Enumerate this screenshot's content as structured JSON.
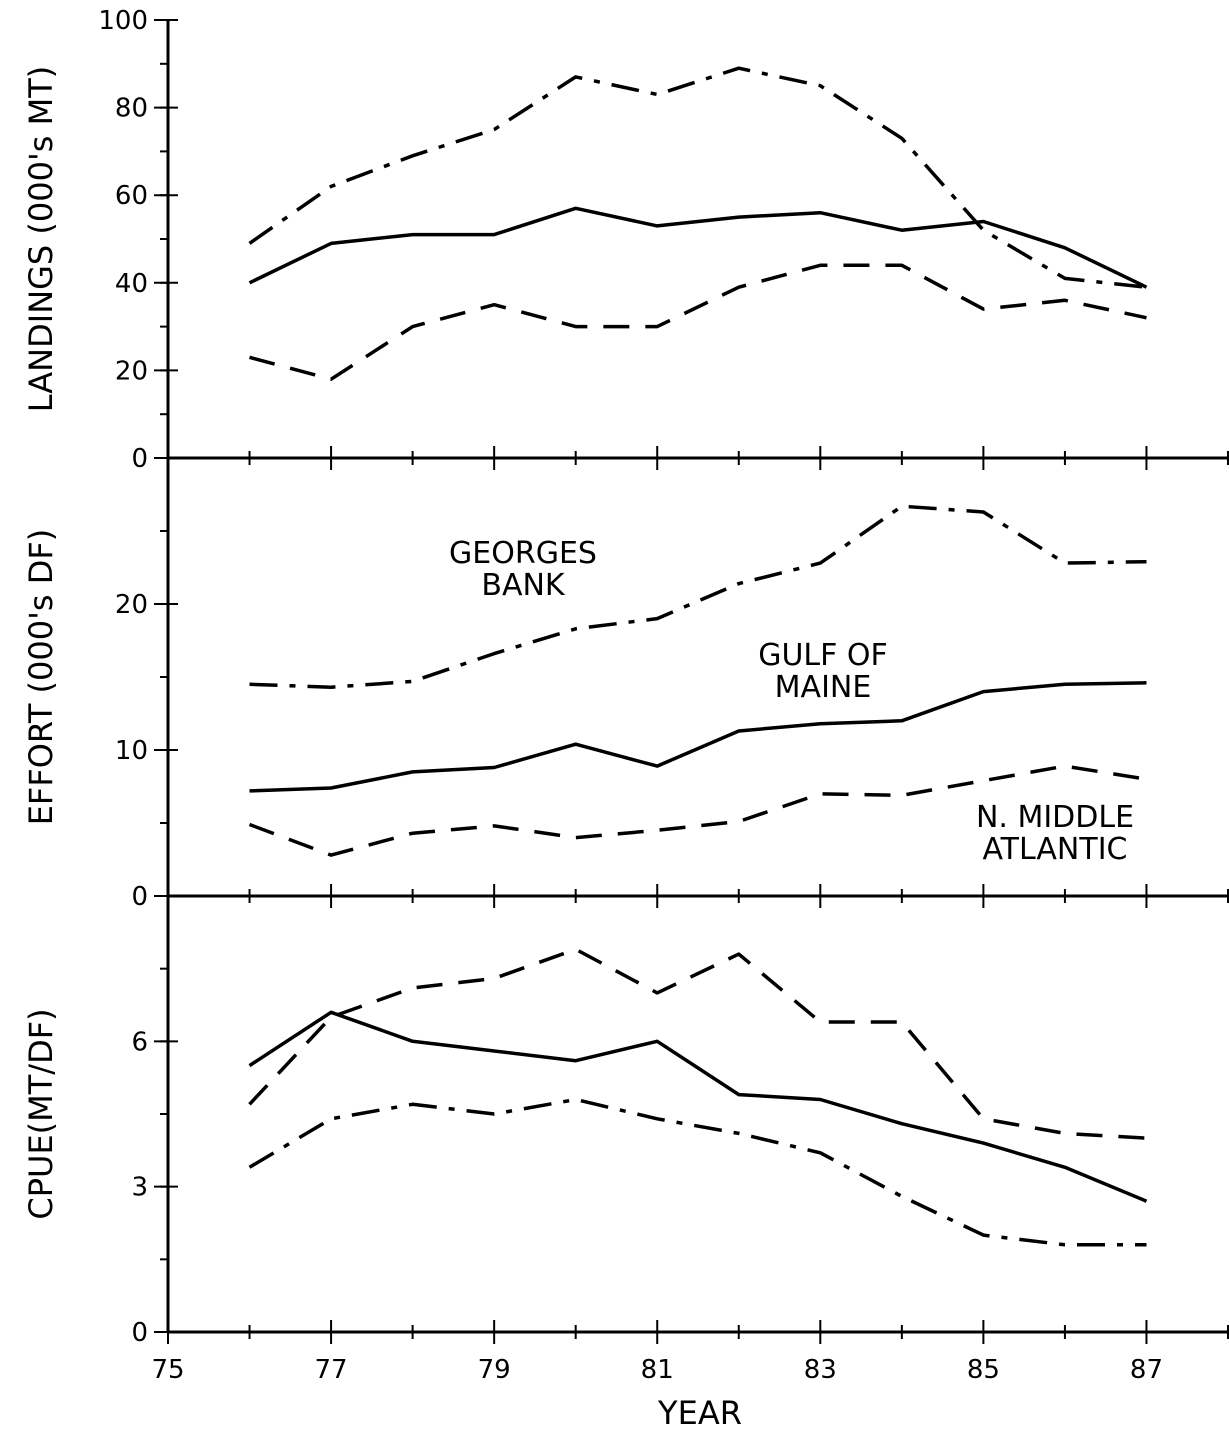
{
  "chart_data": {
    "type": "line",
    "xlabel": "YEAR",
    "x_ticks": [
      "75",
      "77",
      "79",
      "81",
      "83",
      "85",
      "87"
    ],
    "xlim": [
      75,
      88
    ],
    "x": [
      76,
      77,
      78,
      79,
      80,
      81,
      82,
      83,
      84,
      85,
      86,
      87
    ],
    "style_legend": {
      "dashdot": "GEORGES BANK",
      "solid": "GULF OF MAINE",
      "dashed": "N. MIDDLE ATLANTIC"
    },
    "panels": [
      {
        "id": "landings",
        "ylabel": "LANDINGS (000's MT)",
        "ylim": [
          0,
          100
        ],
        "y_ticks": [
          "0",
          "20",
          "40",
          "60",
          "80",
          "100"
        ],
        "y_tick_values": [
          0,
          20,
          40,
          60,
          80,
          100
        ],
        "series": [
          {
            "style": "dashdot",
            "values": [
              49,
              62,
              69,
              75,
              87,
              83,
              89,
              85,
              73,
              52,
              41,
              39
            ]
          },
          {
            "style": "solid",
            "values": [
              40,
              49,
              51,
              51,
              57,
              53,
              55,
              56,
              52,
              54,
              48,
              39
            ]
          },
          {
            "style": "dashed",
            "values": [
              23,
              18,
              30,
              35,
              30,
              30,
              39,
              44,
              44,
              34,
              36,
              32
            ]
          }
        ]
      },
      {
        "id": "effort",
        "ylabel": "EFFORT (000's DF)",
        "ylim": [
          0,
          30
        ],
        "y_ticks": [
          "0",
          "10",
          "20"
        ],
        "y_tick_values": [
          0,
          10,
          20
        ],
        "annotations": [
          {
            "lines": [
              "GEORGES",
              "BANK"
            ]
          },
          {
            "lines": [
              "GULF OF",
              "MAINE"
            ]
          },
          {
            "lines": [
              "N. MIDDLE",
              "ATLANTIC"
            ]
          }
        ],
        "series": [
          {
            "style": "dashdot",
            "values": [
              14.5,
              14.3,
              14.7,
              16.6,
              18.3,
              19.0,
              21.4,
              22.8,
              26.7,
              26.3,
              22.8,
              22.9
            ]
          },
          {
            "style": "solid",
            "values": [
              7.2,
              7.4,
              8.5,
              8.8,
              10.4,
              8.9,
              11.3,
              11.8,
              12.0,
              14.0,
              14.5,
              14.6
            ]
          },
          {
            "style": "dashed",
            "values": [
              4.9,
              2.8,
              4.3,
              4.8,
              4.0,
              4.5,
              5.1,
              7.0,
              6.9,
              7.9,
              8.9,
              8.0
            ]
          }
        ]
      },
      {
        "id": "cpue",
        "ylabel": "CPUE(MT/DF)",
        "ylim": [
          0,
          9
        ],
        "y_ticks": [
          "0",
          "3",
          "6"
        ],
        "y_tick_values": [
          0,
          3,
          6
        ],
        "series": [
          {
            "style": "dashdot",
            "values": [
              3.4,
              4.4,
              4.7,
              4.5,
              4.8,
              4.4,
              4.1,
              3.7,
              2.8,
              2.0,
              1.8,
              1.8
            ]
          },
          {
            "style": "solid",
            "values": [
              5.5,
              6.6,
              6.0,
              5.8,
              5.6,
              6.0,
              4.9,
              4.8,
              4.3,
              3.9,
              3.4,
              2.7
            ]
          },
          {
            "style": "dashed",
            "values": [
              4.7,
              6.5,
              7.1,
              7.3,
              7.9,
              7.0,
              7.8,
              6.4,
              6.4,
              4.4,
              4.1,
              4.0
            ]
          }
        ]
      }
    ]
  }
}
